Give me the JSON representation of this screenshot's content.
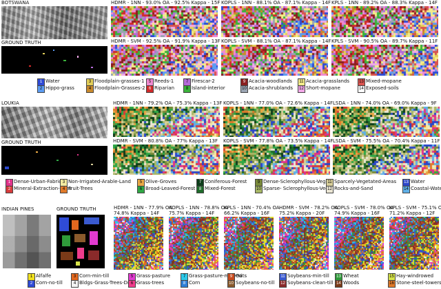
{
  "botswana": {
    "title": "BOTSWANA",
    "gt_label": "GROUND TRUTH",
    "maps": [
      {
        "label": "HDMR - 1NN - 93.0% OA - 92.5% Kappa - 15F"
      },
      {
        "label": "KOPLS - 1NN - 88.1% OA - 87.1% Kappa - 14F"
      },
      {
        "label": "KPLS - 1NN - 89.2% OA - 88.3% Kappa - 14F"
      },
      {
        "label": "HDMR - SVM - 92.5% OA - 91.9% Kappa - 13F"
      },
      {
        "label": "KOPLS - SVM - 88.1% OA - 87.1% Kappa - 14F"
      },
      {
        "label": "KPLS - SVM - 90.5% OA - 89.7% Kappa - 11F"
      }
    ],
    "legend": [
      {
        "num": "1",
        "name": "Water",
        "color": "#2f4bd6"
      },
      {
        "num": "2",
        "name": "Hippo-grass",
        "color": "#5c9cf2"
      },
      {
        "num": "3",
        "name": "Floodplain-grasses-1",
        "color": "#e3cf5a"
      },
      {
        "num": "4",
        "name": "Floodplain-Grasses-2",
        "color": "#c98a2c"
      },
      {
        "num": "5",
        "name": "Reeds-1",
        "color": "#f08ad0"
      },
      {
        "num": "6",
        "name": "Riparian",
        "color": "#d12a2a"
      },
      {
        "num": "7",
        "name": "Firescar-2",
        "color": "#b56ad9"
      },
      {
        "num": "8",
        "name": "Island-interior",
        "color": "#3bb23b"
      },
      {
        "num": "9",
        "name": "Acacia-woodlands",
        "color": "#8a1f1f"
      },
      {
        "num": "10",
        "name": "Acacia-shrublands",
        "color": "#9aa4b2"
      },
      {
        "num": "11",
        "name": "Acacia-grasslands",
        "color": "#f4ec8a"
      },
      {
        "num": "12",
        "name": "Short-mopane",
        "color": "#f2a8e8"
      },
      {
        "num": "13",
        "name": "Mixed-mopane",
        "color": "#d9534f"
      },
      {
        "num": "14",
        "name": "Exposed-soils",
        "color": "#ffffff"
      }
    ]
  },
  "loukia": {
    "title": "LOUKIA",
    "gt_label": "GROUND TRUTH",
    "maps": [
      {
        "label": "HDMR - 1NN - 79.2% OA - 75.3% Kappa - 13F"
      },
      {
        "label": "KOPLS - 1NN - 77.0% OA - 72.6% Kappa - 14F"
      },
      {
        "label": "LSDA - 1NN - 74.0% OA - 69.0% Kappa - 9F"
      },
      {
        "label": "HDMR - SVM - 80.8% OA - 77% Kappa - 13F"
      },
      {
        "label": "KOPLS - SVM - 77.8% OA - 73.5% Kappa - 14F"
      },
      {
        "label": "LSDA - SVM - 75.5% OA - 70.4% Kappa - 11F"
      }
    ],
    "legend": [
      {
        "num": "1",
        "name": "Dense-Urban-Fabric",
        "color": "#e0338a"
      },
      {
        "num": "2",
        "name": "Mineral-Extraction-Sites",
        "color": "#d83b3b"
      },
      {
        "num": "3",
        "name": "Non-Irrigated-Arable-Land",
        "color": "#f3eaa0"
      },
      {
        "num": "4",
        "name": "Fruit-Trees",
        "color": "#e07a2a"
      },
      {
        "num": "5",
        "name": "Olive-Groves",
        "color": "#e9a845"
      },
      {
        "num": "6",
        "name": "Broad-Leaved-Forest",
        "color": "#2fa845"
      },
      {
        "num": "7",
        "name": "Coniferous-Forest",
        "color": "#0d3d1a"
      },
      {
        "num": "8",
        "name": "Mixed-Forest",
        "color": "#1f6b2a"
      },
      {
        "num": "9",
        "name": "Dense-Sclerophyllous-Veg.",
        "color": "#7a8a3a"
      },
      {
        "num": "10",
        "name": "Sparse- Sclerophyllous-Veg.",
        "color": "#a8b866"
      },
      {
        "num": "11",
        "name": "Sparcely-Vegetated-Areas",
        "color": "#d8cf9a"
      },
      {
        "num": "12",
        "name": "Rocks-and-Sand",
        "color": "#ece7d5"
      },
      {
        "num": "13",
        "name": "Water",
        "color": "#2b46c9"
      },
      {
        "num": "14",
        "name": "Coastal-Water",
        "color": "#5fb0e8"
      }
    ]
  },
  "indian_pines": {
    "title": "INDIAN PINES",
    "gt_label": "GROUND TRUTH",
    "maps": [
      {
        "label1": "HDMR - 1NN - 77.9% OA",
        "label2": "74.8% Kappa - 14F"
      },
      {
        "label1": "KOPLS - 1NN - 78.8% OA",
        "label2": "75.7% Kappa - 14F"
      },
      {
        "label1": "KPLS - 1NN - 70.4% OA",
        "label2": "66.2% Kappa - 16F"
      },
      {
        "label1": "HDMR - SVM - 78.2% OA",
        "label2": "75.2% Kappa - 20F"
      },
      {
        "label1": "KOPLS - SVM - 78.0% OA",
        "label2": "74.9% Kappa - 16F"
      },
      {
        "label1": "KPLS - SVM - 75.1% OA",
        "label2": "71.2% Kappa - 12F"
      }
    ],
    "legend": [
      {
        "num": "1",
        "name": "Alfalfe",
        "color": "#f0e020"
      },
      {
        "num": "2",
        "name": "Corn-no-till",
        "color": "#2f4bd6"
      },
      {
        "num": "3",
        "name": "Corn-min-till",
        "color": "#e2681f"
      },
      {
        "num": "4",
        "name": "Bldgs-Grass-Trees-Drive",
        "color": "#f3f3f3"
      },
      {
        "num": "5",
        "name": "Grass-pasture",
        "color": "#e03ad0"
      },
      {
        "num": "6",
        "name": "Grass-trees",
        "color": "#f03c8c"
      },
      {
        "num": "7",
        "name": "Grass-pasture-mowed",
        "color": "#2cc8e8"
      },
      {
        "num": "8",
        "name": "Corn",
        "color": "#2e7fd6"
      },
      {
        "num": "9",
        "name": "Oats",
        "color": "#c84b1e"
      },
      {
        "num": "10",
        "name": "Soybeans-no-till",
        "color": "#8a5a2c"
      },
      {
        "num": "11",
        "name": "Soybeans-min-till",
        "color": "#3a5ad0"
      },
      {
        "num": "12",
        "name": "Soybeans-clean-till",
        "color": "#8a2a2a"
      },
      {
        "num": "13",
        "name": "Wheat",
        "color": "#2f9a3a"
      },
      {
        "num": "14",
        "name": "Woods",
        "color": "#7a3a18"
      },
      {
        "num": "15",
        "name": "Hay-windrowed",
        "color": "#d7e44a"
      },
      {
        "num": "16",
        "name": "Stone-steel-towers",
        "color": "#e07a2a"
      }
    ]
  }
}
